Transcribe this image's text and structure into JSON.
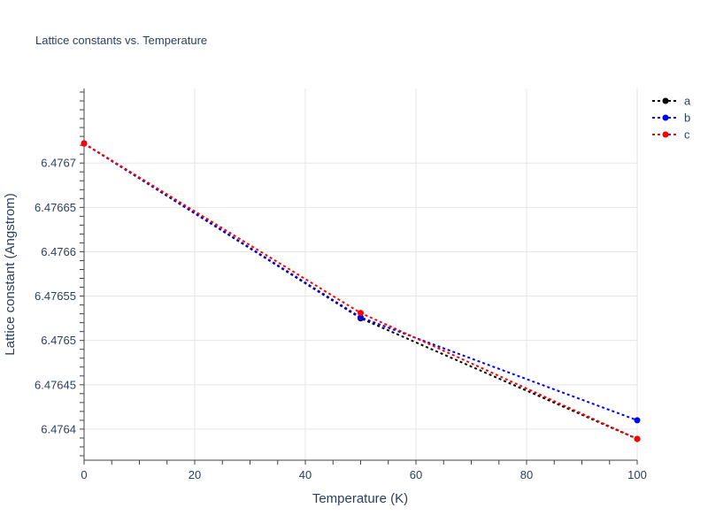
{
  "chart_data": {
    "type": "line",
    "title": "Lattice constants vs. Temperature",
    "xlabel": "Temperature (K)",
    "ylabel": "Lattice constant (Angstrom)",
    "xlim": [
      0,
      100
    ],
    "ylim": [
      6.476365,
      6.476784
    ],
    "x_ticks": [
      0,
      20,
      40,
      60,
      80,
      100
    ],
    "x_tick_labels": [
      "0",
      "20",
      "40",
      "60",
      "80",
      "100"
    ],
    "y_ticks": [
      6.4764,
      6.47645,
      6.4765,
      6.47655,
      6.4766,
      6.47665,
      6.4767
    ],
    "y_tick_labels": [
      "6.4764",
      "6.47645",
      "6.4765",
      "6.47655",
      "6.4766",
      "6.47665",
      "6.4767"
    ],
    "grid": true,
    "legend_position": "top-right",
    "series": [
      {
        "name": "a",
        "color": "#000000",
        "x": [
          0,
          50,
          100
        ],
        "y": [
          6.476722,
          6.476525,
          6.476389
        ]
      },
      {
        "name": "b",
        "color": "#0000ff",
        "x": [
          0,
          50,
          100
        ],
        "y": [
          6.476722,
          6.476526,
          6.47641
        ]
      },
      {
        "name": "c",
        "color": "#ff0000",
        "x": [
          0,
          50,
          100
        ],
        "y": [
          6.476722,
          6.476531,
          6.476389
        ]
      }
    ]
  }
}
